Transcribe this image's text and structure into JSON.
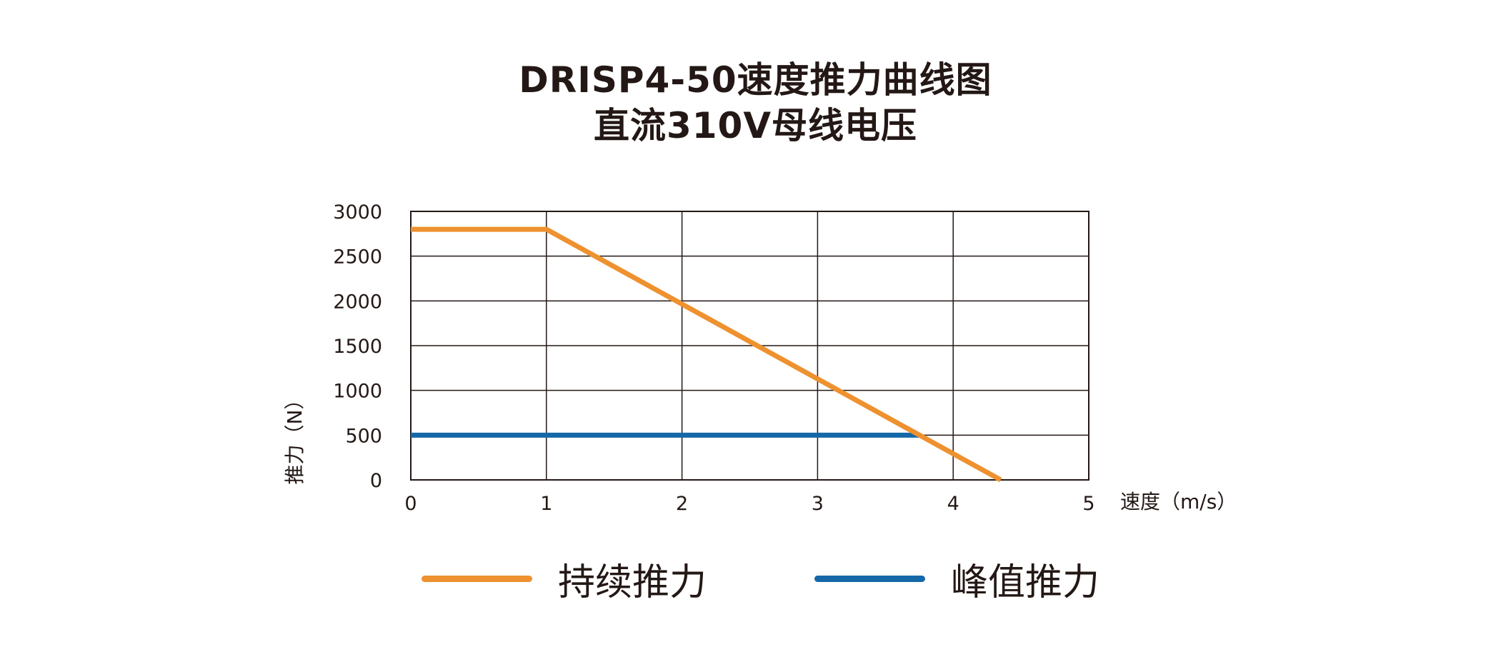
{
  "chart_data": {
    "type": "line",
    "title": "DRISP4-50速度推力曲线图",
    "subtitle": "直流310V母线电压",
    "xlabel": "速度（m/s）",
    "ylabel": "推力（N）",
    "xlim": [
      0,
      5
    ],
    "ylim": [
      0,
      3000
    ],
    "xticks": [
      "0",
      "1",
      "2",
      "3",
      "4",
      "5"
    ],
    "yticks": [
      "0",
      "500",
      "1000",
      "1500",
      "2000",
      "2500",
      "3000"
    ],
    "grid": true,
    "legend_position": "bottom",
    "series": [
      {
        "name": "持续推力",
        "color": "#EE912F",
        "x": [
          0,
          1,
          4.35
        ],
        "y": [
          2800,
          2800,
          0
        ]
      },
      {
        "name": "峰值推力",
        "color": "#1468A8",
        "x": [
          0,
          3.75
        ],
        "y": [
          500,
          500
        ]
      }
    ]
  }
}
